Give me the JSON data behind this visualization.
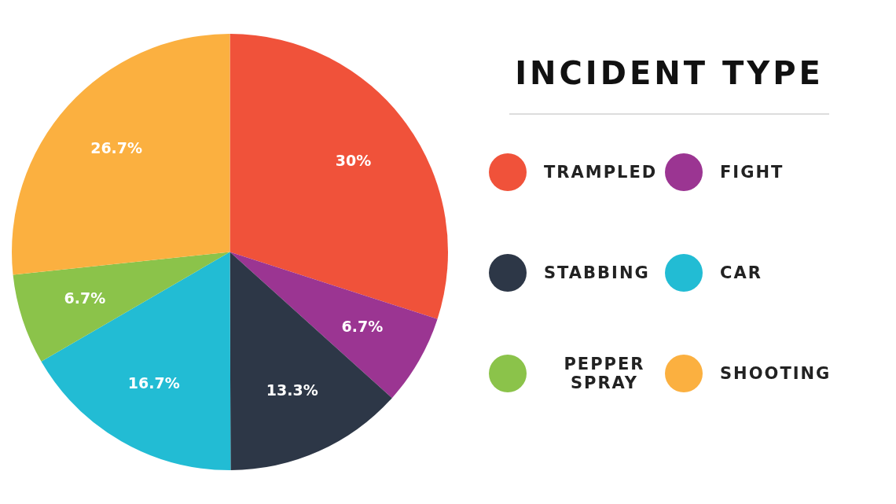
{
  "chart_data": {
    "type": "pie",
    "legend_title": "INCIDENT TYPE",
    "legend": "right",
    "categories": [
      "TRAMPLED",
      "FIGHT",
      "STABBING",
      "CAR",
      "PEPPER SPRAY",
      "SHOOTING"
    ],
    "values": [
      30,
      6.7,
      13.3,
      16.7,
      6.7,
      26.7
    ],
    "value_labels": [
      "30%",
      "6.7%",
      "13.3%",
      "16.7%",
      "6.7%",
      "26.7%"
    ],
    "colors": [
      "#f0523a",
      "#9b3592",
      "#2d3747",
      "#22bcd4",
      "#8bc34a",
      "#fbb040"
    ]
  }
}
